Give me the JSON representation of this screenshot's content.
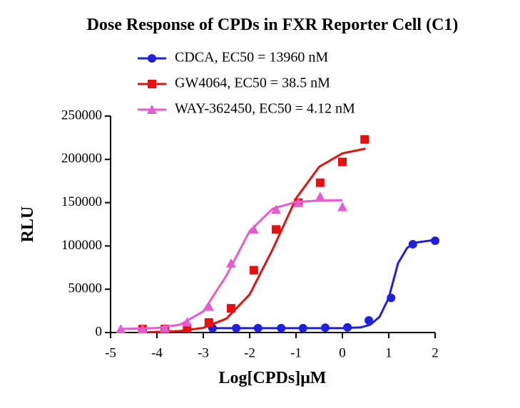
{
  "chart_data": {
    "type": "scatter",
    "title": "Dose Response of CPDs in FXR Reporter Cell (C1)",
    "x_label": "Log[CPDs]μM",
    "y_label": "RLU",
    "xlim": [
      -5,
      2
    ],
    "xticks": [
      -5,
      -4,
      -3,
      -2,
      -1,
      0,
      1,
      2
    ],
    "ylim": [
      0,
      250000
    ],
    "yticks": [
      0,
      50000,
      100000,
      150000,
      200000,
      250000
    ],
    "series": [
      {
        "name": "CDCA, EC50 = 13960 nM",
        "color": "#1f1fe0",
        "marker": "circle",
        "x": [
          -2.8,
          -2.29,
          -1.82,
          -1.32,
          -0.85,
          -0.37,
          0.11,
          0.57,
          1.05,
          1.52,
          2.0
        ],
        "values": [
          5000,
          5000,
          5000,
          5000,
          5000,
          5500,
          6000,
          14000,
          40000,
          102000,
          106000
        ],
        "fit_x": [
          -2.8,
          0,
          0.4,
          0.6,
          0.8,
          1.0,
          1.1,
          1.2,
          1.4,
          1.6,
          2.0
        ],
        "fit_values": [
          5000,
          5000,
          6000,
          9000,
          18000,
          40000,
          60000,
          80000,
          98000,
          104000,
          107000
        ]
      },
      {
        "name": "GW4064, EC50 = 38.5 nM",
        "color": "#e8100f",
        "marker": "square",
        "x": [
          -4.31,
          -3.83,
          -3.35,
          -2.88,
          -2.4,
          -1.91,
          -1.43,
          -0.95,
          -0.48,
          0.0,
          0.48
        ],
        "values": [
          4000,
          4000,
          5000,
          11500,
          28000,
          72000,
          119000,
          150000,
          173000,
          197000,
          223000
        ],
        "fit_x": [
          -4.2,
          -3.5,
          -3.0,
          -2.5,
          -2.0,
          -1.5,
          -1.0,
          -0.5,
          0,
          0.5
        ],
        "fit_values": [
          350,
          1740,
          5390,
          16100,
          44000,
          96400,
          154800,
          191400,
          206900,
          212400
        ]
      },
      {
        "name": "WAY-362450, EC50 = 4.12 nM",
        "color": "#e85bd0",
        "marker": "triangle",
        "x": [
          -4.78,
          -4.31,
          -3.83,
          -3.35,
          -2.88,
          -2.4,
          -1.91,
          -1.43,
          -0.95,
          -0.48,
          0.0
        ],
        "values": [
          4000,
          4000,
          5000,
          12000,
          30000,
          80000,
          119000,
          142000,
          150000,
          157000,
          145000
        ],
        "fit_x": [
          -4.8,
          -4.0,
          -3.5,
          -3.0,
          -2.5,
          -2.0,
          -1.5,
          -1.0,
          -0.5,
          0
        ],
        "fit_values": [
          4100,
          5170,
          9090,
          24400,
          65800,
          117200,
          143100,
          150700,
          152400,
          152800
        ]
      }
    ]
  }
}
